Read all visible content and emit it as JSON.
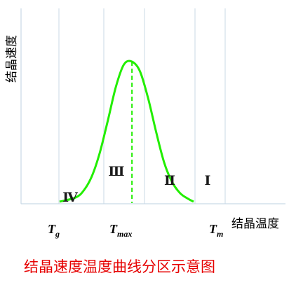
{
  "chart_data": {
    "type": "line",
    "title": "结晶速度温度曲线分区示意图",
    "xlabel": "结晶温度",
    "ylabel": "结晶速度",
    "x_ticks": [
      {
        "main": "T",
        "sub": "g",
        "sub_italic": false
      },
      {
        "main": "T",
        "sub": "max",
        "sub_italic": true
      },
      {
        "main": "T",
        "sub": "m",
        "sub_italic": false
      }
    ],
    "regions": [
      "Ⅳ",
      "Ⅲ",
      "Ⅱ",
      "Ⅰ"
    ],
    "series": [
      {
        "color": "#22ee00",
        "x": [
          0.0,
          0.12,
          0.18,
          0.24,
          0.3,
          0.36,
          0.42,
          0.48,
          0.54,
          0.6,
          0.66,
          0.72,
          0.78,
          0.84,
          0.9,
          0.96,
          1.0
        ],
        "values": [
          0.0,
          0.03,
          0.08,
          0.18,
          0.35,
          0.58,
          0.82,
          0.98,
          1.0,
          0.93,
          0.74,
          0.5,
          0.28,
          0.14,
          0.06,
          0.02,
          0.0
        ]
      }
    ],
    "peak_marker": {
      "x": 0.54,
      "style": "dashed",
      "color": "#22ee00"
    },
    "grid": "vertical",
    "axes": "x and y lines without arrows"
  }
}
